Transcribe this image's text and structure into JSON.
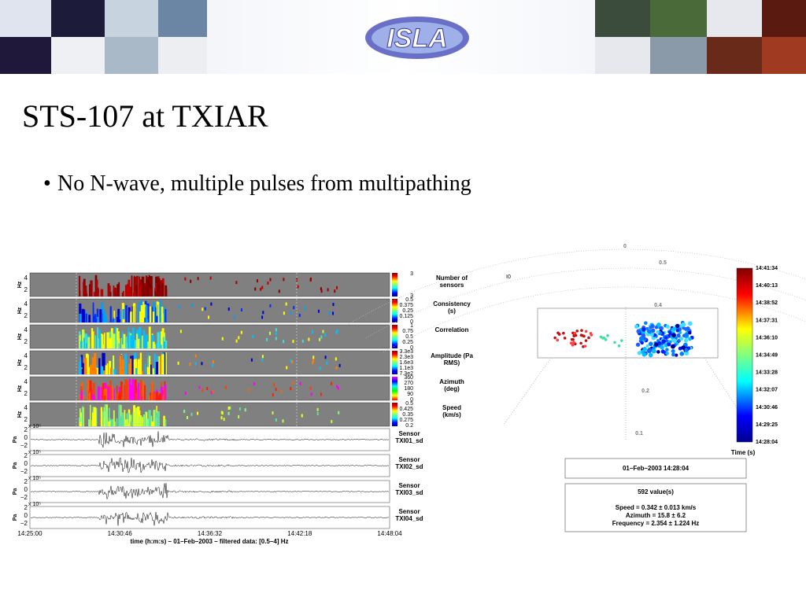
{
  "header": {
    "logo": "ISLA"
  },
  "slide": {
    "title": "STS-107 at TXIAR",
    "bullets": [
      "No N-wave, multiple pulses from multipathing"
    ]
  },
  "left_figure": {
    "panels": [
      {
        "label": "Number of sensors",
        "ylabel": "Hz",
        "yticks": [
          "4",
          "2"
        ],
        "colorbar": [
          "3",
          "3"
        ]
      },
      {
        "label": "Consistency (s)",
        "ylabel": "Hz",
        "yticks": [
          "4",
          "2"
        ],
        "colorbar": [
          "0.5",
          "0.375",
          "0.25",
          "0.125",
          "0"
        ]
      },
      {
        "label": "Correlation",
        "ylabel": "Hz",
        "yticks": [
          "4",
          "2"
        ],
        "colorbar": [
          "1",
          "0.75",
          "0.5",
          "0.25",
          "0"
        ]
      },
      {
        "label": "Amplitude (Pa RMS)",
        "ylabel": "Hz",
        "yticks": [
          "4",
          "2"
        ],
        "colorbar": [
          "3.3e3",
          "2.3e3",
          "1.6e3",
          "1.1e3",
          "7.3e2"
        ]
      },
      {
        "label": "Azimuth (deg)",
        "ylabel": "Hz",
        "yticks": [
          "4",
          "2"
        ],
        "colorbar": [
          "360",
          "270",
          "180",
          "90",
          "0"
        ]
      },
      {
        "label": "Speed (km/s)",
        "ylabel": "Hz",
        "yticks": [
          "4",
          "2"
        ],
        "colorbar": [
          "0.5",
          "0.425",
          "0.35",
          "0.275",
          "0.2"
        ]
      }
    ],
    "waveforms": [
      {
        "label": "Sensor TXI01_sd",
        "ylabel": "Pa",
        "yticks": [
          "2",
          "0",
          "−2"
        ],
        "scale": "x 10⁵"
      },
      {
        "label": "Sensor TXI02_sd",
        "ylabel": "Pa",
        "yticks": [
          "2",
          "0",
          "−2"
        ],
        "scale": "x 10⁵"
      },
      {
        "label": "Sensor TXI03_sd",
        "ylabel": "Pa",
        "yticks": [
          "2",
          "0",
          "−2"
        ],
        "scale": "x 10⁵"
      },
      {
        "label": "Sensor TXI04_sd",
        "ylabel": "Pa",
        "yticks": [
          "2",
          "0",
          "−2"
        ],
        "scale": "x 10⁵"
      }
    ],
    "time_ticks": [
      "14:25:00",
      "14:30:46",
      "14:36:32",
      "14:42:18",
      "14:48:04"
    ],
    "xlabel": "time (h:m:s) – 01–Feb–2003 – filtered data: [0.5–4] Hz"
  },
  "right_figure": {
    "corner_label": "I0",
    "polar_labels": [
      "0",
      "0.5",
      "0.4",
      "0.2",
      "0.1"
    ],
    "colorbar_ticks": [
      "14:41:34",
      "14:40:13",
      "14:38:52",
      "14:37:31",
      "14:36:10",
      "14:34:49",
      "14:33:28",
      "14:32:07",
      "14:30:46",
      "14:29:25",
      "14:28:04"
    ],
    "colorbar_label": "Time (s)",
    "date_box": "01–Feb–2003 14:28:04",
    "summary": {
      "count": "592 value(s)",
      "lines": [
        "Speed = 0.342 ± 0.013 km/s",
        "Azimuth = 15.8 ± 6.2",
        "Frequency = 2.354 ± 1.224 Hz"
      ]
    }
  }
}
